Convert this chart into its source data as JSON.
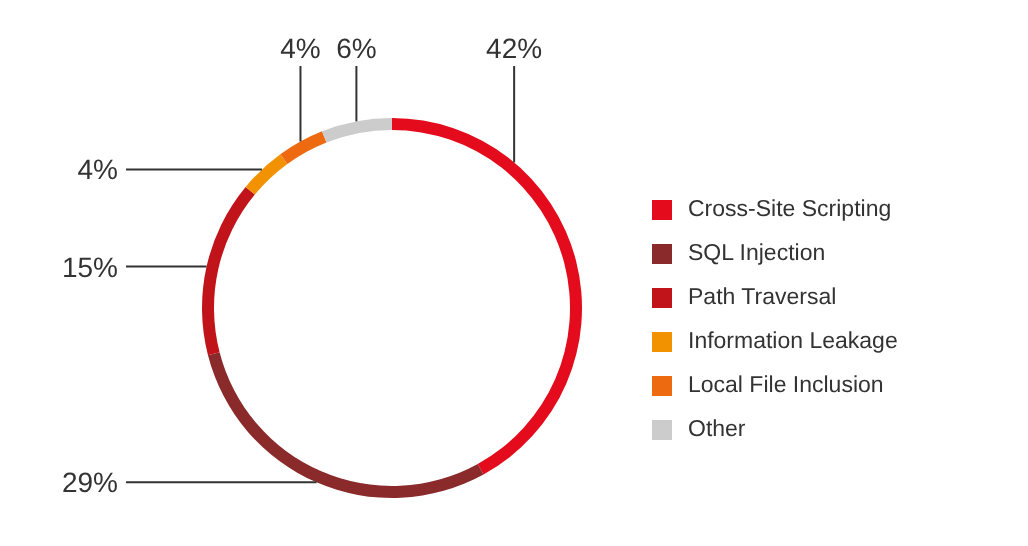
{
  "chart_data": {
    "type": "donut",
    "categories": [
      "Cross-Site Scripting",
      "SQL Injection",
      "Path Traversal",
      "Information Leakage",
      "Local File Inclusion",
      "Other"
    ],
    "values": [
      42,
      29,
      15,
      4,
      4,
      6
    ],
    "colors": [
      "#e30b1c",
      "#8b2a2a",
      "#c0141a",
      "#f39200",
      "#ee6a10",
      "#cccccc"
    ],
    "value_labels": [
      "42%",
      "29%",
      "15%",
      "4%",
      "4%",
      "6%"
    ],
    "legend": "right"
  }
}
